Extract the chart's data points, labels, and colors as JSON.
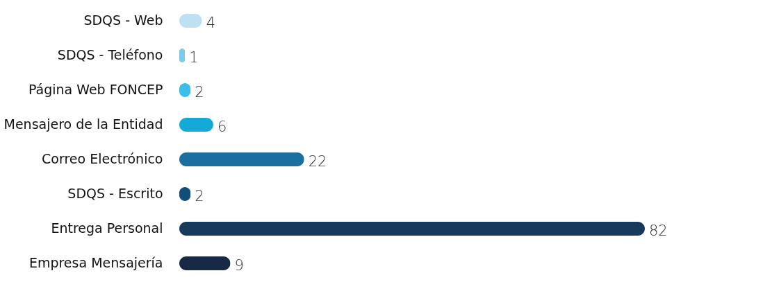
{
  "chart_data": {
    "type": "bar",
    "orientation": "horizontal",
    "data_labels": true,
    "categories": [
      "SDQS - Web",
      "SDQS - Teléfono",
      "Página Web FONCEP",
      "Mensajero de la Entidad",
      "Correo Electrónico",
      "SDQS - Escrito",
      "Entrega Personal",
      "Empresa Mensajería"
    ],
    "values": [
      4,
      1,
      2,
      6,
      22,
      2,
      82,
      9
    ],
    "colors": [
      "#bde0f3",
      "#7ccbee",
      "#3dbde9",
      "#15a9d6",
      "#1a6fa0",
      "#124e7a",
      "#173a5a",
      "#172a45"
    ]
  }
}
